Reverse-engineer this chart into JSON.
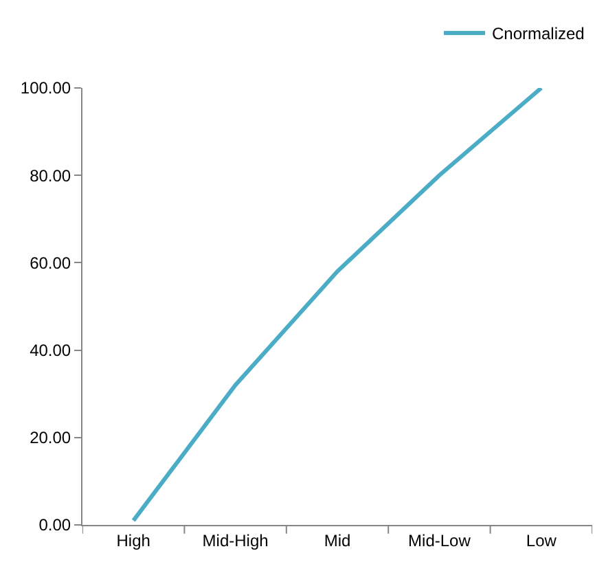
{
  "chart_data": {
    "type": "line",
    "categories": [
      "High",
      "Mid-High",
      "Mid",
      "Mid-Low",
      "Low"
    ],
    "series": [
      {
        "name": "Cnormalized",
        "color": "#4bacc6",
        "values": [
          1,
          32,
          58,
          80,
          100
        ]
      }
    ],
    "ylim": [
      0,
      100
    ],
    "yticks": [
      {
        "value": 0,
        "label": "0.00"
      },
      {
        "value": 20,
        "label": "20.00"
      },
      {
        "value": 40,
        "label": "40.00"
      },
      {
        "value": 60,
        "label": "60.00"
      },
      {
        "value": 80,
        "label": "80.00"
      },
      {
        "value": 100,
        "label": "100.00"
      }
    ],
    "legend": "top right",
    "marker": "none",
    "line_style": "solid"
  }
}
